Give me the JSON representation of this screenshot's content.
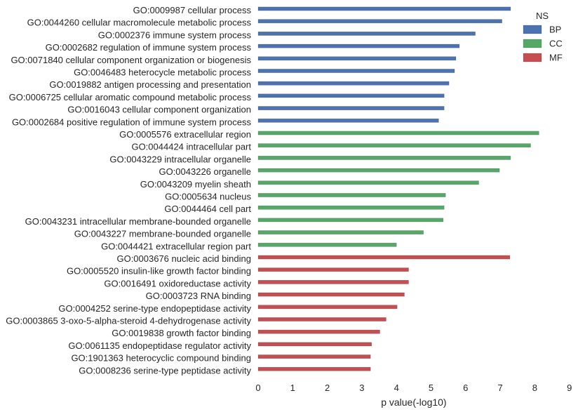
{
  "chart_data": {
    "type": "bar",
    "orientation": "horizontal",
    "xlabel": "p value(-log10)",
    "xlim": [
      0,
      9
    ],
    "xticks": [
      0,
      1,
      2,
      3,
      4,
      5,
      6,
      7,
      8,
      9
    ],
    "grid": false,
    "legend": {
      "title": "NS",
      "placement": "top-right",
      "entries": [
        {
          "name": "BP",
          "color": "#4c72b0"
        },
        {
          "name": "CC",
          "color": "#55a868"
        },
        {
          "name": "MF",
          "color": "#c44e52"
        }
      ]
    },
    "categories": [
      {
        "label": "GO:0009987 cellular process",
        "value": 7.3,
        "ns": "BP"
      },
      {
        "label": "GO:0044260 cellular macromolecule metabolic process",
        "value": 7.05,
        "ns": "BP"
      },
      {
        "label": "GO:0002376 immune system process",
        "value": 6.28,
        "ns": "BP"
      },
      {
        "label": "GO:0002682 regulation of immune system process",
        "value": 5.82,
        "ns": "BP"
      },
      {
        "label": "GO:0071840 cellular component organization or biogenesis",
        "value": 5.72,
        "ns": "BP"
      },
      {
        "label": "GO:0046483 heterocycle metabolic process",
        "value": 5.68,
        "ns": "BP"
      },
      {
        "label": "GO:0019882 antigen processing and presentation",
        "value": 5.52,
        "ns": "BP"
      },
      {
        "label": "GO:0006725 cellular aromatic compound metabolic process",
        "value": 5.38,
        "ns": "BP"
      },
      {
        "label": "GO:0016043 cellular component organization",
        "value": 5.38,
        "ns": "BP"
      },
      {
        "label": "GO:0002684 positive regulation of immune system process",
        "value": 5.22,
        "ns": "BP"
      },
      {
        "label": "GO:0005576 extracellular region",
        "value": 8.12,
        "ns": "CC"
      },
      {
        "label": "GO:0044424 intracellular part",
        "value": 7.88,
        "ns": "CC"
      },
      {
        "label": "GO:0043229 intracellular organelle",
        "value": 7.3,
        "ns": "CC"
      },
      {
        "label": "GO:0043226 organelle",
        "value": 6.98,
        "ns": "CC"
      },
      {
        "label": "GO:0043209 myelin sheath",
        "value": 6.38,
        "ns": "CC"
      },
      {
        "label": "GO:0005634 nucleus",
        "value": 5.42,
        "ns": "CC"
      },
      {
        "label": "GO:0044464 cell part",
        "value": 5.38,
        "ns": "CC"
      },
      {
        "label": "GO:0043231 intracellular membrane-bounded organelle",
        "value": 5.35,
        "ns": "CC"
      },
      {
        "label": "GO:0043227 membrane-bounded organelle",
        "value": 4.78,
        "ns": "CC"
      },
      {
        "label": "GO:0044421 extracellular region part",
        "value": 4.0,
        "ns": "CC"
      },
      {
        "label": "GO:0003676 nucleic acid binding",
        "value": 7.28,
        "ns": "MF"
      },
      {
        "label": "GO:0005520 insulin-like growth factor binding",
        "value": 4.35,
        "ns": "MF"
      },
      {
        "label": "GO:0016491 oxidoreductase activity",
        "value": 4.35,
        "ns": "MF"
      },
      {
        "label": "GO:0003723 RNA binding",
        "value": 4.23,
        "ns": "MF"
      },
      {
        "label": "GO:0004252 serine-type endopeptidase activity",
        "value": 4.02,
        "ns": "MF"
      },
      {
        "label": "GO:0003865 3-oxo-5-alpha-steroid 4-dehydrogenase activity",
        "value": 3.7,
        "ns": "MF"
      },
      {
        "label": "GO:0019838 growth factor binding",
        "value": 3.52,
        "ns": "MF"
      },
      {
        "label": "GO:0061135 endopeptidase regulator activity",
        "value": 3.28,
        "ns": "MF"
      },
      {
        "label": "GO:1901363 heterocyclic compound binding",
        "value": 3.25,
        "ns": "MF"
      },
      {
        "label": "GO:0008236 serine-type peptidase activity",
        "value": 3.25,
        "ns": "MF"
      }
    ]
  }
}
